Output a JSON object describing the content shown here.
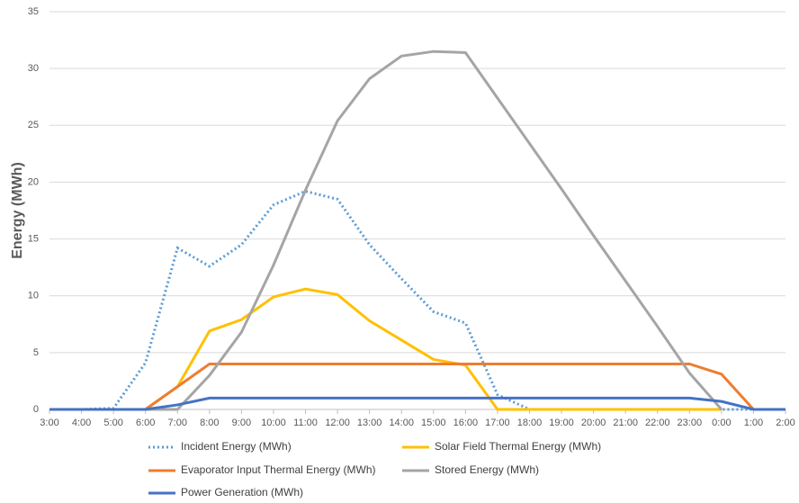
{
  "chart_data": {
    "type": "line",
    "y_label": "Energy (MWh)",
    "categories": [
      "3:00",
      "4:00",
      "5:00",
      "6:00",
      "7:00",
      "8:00",
      "9:00",
      "10:00",
      "11:00",
      "12:00",
      "13:00",
      "14:00",
      "15:00",
      "16:00",
      "17:00",
      "18:00",
      "19:00",
      "20:00",
      "21:00",
      "22:00",
      "23:00",
      "0:00",
      "1:00",
      "2:00"
    ],
    "ylim": [
      0,
      35
    ],
    "yticks": [
      0,
      5,
      10,
      15,
      20,
      25,
      30,
      35
    ],
    "grid": true,
    "legend": "bottom",
    "series": [
      {
        "name": "Incident Energy (MWh)",
        "color": "#5b9bd5",
        "dash": "dotted",
        "values": [
          0,
          0,
          0.1,
          4.1,
          14.2,
          12.6,
          14.5,
          18,
          19.2,
          18.5,
          14.5,
          11.5,
          8.6,
          7.6,
          1.3,
          0,
          0,
          0,
          0,
          0,
          0,
          0,
          0,
          0
        ]
      },
      {
        "name": "Solar Field Thermal Energy (MWh)",
        "color": "#ffc000",
        "values": [
          0,
          0,
          0,
          0,
          2,
          6.9,
          7.9,
          9.9,
          10.6,
          10.1,
          7.8,
          6.1,
          4.4,
          3.9,
          0,
          0,
          0,
          0,
          0,
          0,
          0,
          0,
          null,
          null
        ]
      },
      {
        "name": "Evaporator Input Thermal Energy (MWh)",
        "color": "#ed7d31",
        "values": [
          0,
          0,
          0,
          0,
          2,
          4,
          4,
          4,
          4,
          4,
          4,
          4,
          4,
          4,
          4,
          4,
          4,
          4,
          4,
          4,
          4,
          3.1,
          0,
          0
        ]
      },
      {
        "name": "Stored Energy (MWh)",
        "color": "#a5a5a5",
        "values": [
          0,
          0,
          0,
          0,
          0,
          3,
          6.8,
          12.7,
          19.3,
          25.4,
          29.1,
          31.1,
          31.5,
          31.4,
          27.4,
          23.4,
          19.4,
          15.3,
          11.3,
          7.3,
          3.2,
          0,
          null,
          null
        ]
      },
      {
        "name": "Power Generation (MWh)",
        "color": "#4472c4",
        "values": [
          0,
          0,
          0,
          0,
          0.4,
          1,
          1,
          1,
          1,
          1,
          1,
          1,
          1,
          1,
          1,
          1,
          1,
          1,
          1,
          1,
          1,
          0.7,
          0,
          0
        ]
      }
    ]
  }
}
